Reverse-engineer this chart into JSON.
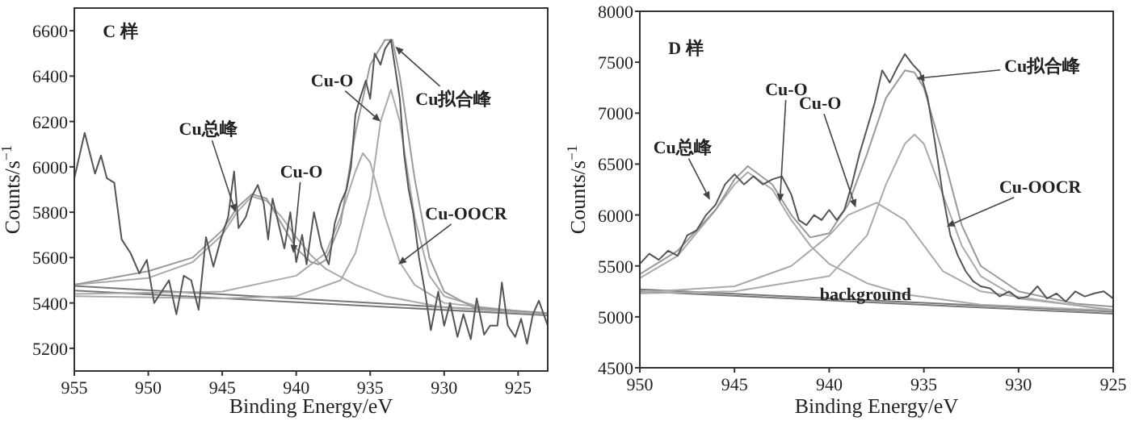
{
  "chart_data": [
    {
      "type": "line",
      "xlabel": "Binding Energy/eV",
      "ylabel": "Counts/s$^{−1}$",
      "xlim": [
        955,
        923
      ],
      "ylim": [
        5100,
        6700
      ],
      "xticks": [
        955,
        950,
        945,
        940,
        935,
        930,
        925
      ],
      "yticks": [
        5200,
        5400,
        5600,
        5800,
        6000,
        6200,
        6400,
        6600
      ],
      "series": [
        {
          "color": "#777777",
          "x": [
            955,
            923
          ],
          "values": [
            5475,
            5355
          ]
        },
        {
          "color": "#777777",
          "x": [
            955,
            923
          ],
          "values": [
            5455,
            5345
          ]
        },
        {
          "color": "#aaaaaa",
          "x": [
            955,
            950,
            947,
            945,
            944,
            943,
            942,
            941,
            940,
            939,
            938,
            936,
            934,
            930,
            923
          ],
          "values": [
            5480,
            5510,
            5580,
            5700,
            5800,
            5870,
            5850,
            5780,
            5690,
            5610,
            5550,
            5480,
            5430,
            5380,
            5350
          ]
        },
        {
          "color": "#aaaaaa",
          "x": [
            955,
            945,
            940,
            938,
            937,
            936,
            935.5,
            935,
            934,
            933,
            932,
            930,
            923
          ],
          "values": [
            5440,
            5450,
            5520,
            5620,
            5780,
            5980,
            6060,
            6020,
            5780,
            5580,
            5480,
            5400,
            5350
          ]
        },
        {
          "color": "#aaaaaa",
          "x": [
            955,
            945,
            940,
            937,
            936,
            935,
            934.3,
            933.6,
            933,
            932,
            931,
            930,
            927,
            923
          ],
          "values": [
            5430,
            5420,
            5430,
            5500,
            5620,
            5870,
            6200,
            6340,
            6200,
            5780,
            5520,
            5430,
            5370,
            5350
          ]
        },
        {
          "color": "#999999",
          "x": [
            955,
            950,
            947,
            945,
            944,
            943,
            942,
            941,
            940,
            939,
            938.5,
            938,
            937,
            936,
            935,
            934,
            933.5,
            933,
            932,
            931,
            930,
            928,
            923
          ],
          "values": [
            5480,
            5540,
            5600,
            5720,
            5820,
            5880,
            5860,
            5750,
            5640,
            5580,
            5570,
            5590,
            5750,
            6150,
            6450,
            6560,
            6560,
            6400,
            5950,
            5600,
            5450,
            5380,
            5355
          ]
        },
        {
          "color": "#555555",
          "x": [
            955,
            954.3,
            953.6,
            953.2,
            952.8,
            952.3,
            951.8,
            951.2,
            950.6,
            950.1,
            949.6,
            949.1,
            948.6,
            948.1,
            947.6,
            947.1,
            946.6,
            946.1,
            945.6,
            945.1,
            944.6,
            944.2,
            943.9,
            943.4,
            943,
            942.6,
            942.2,
            941.9,
            941.6,
            941.2,
            940.8,
            940.4,
            940,
            939.6,
            939.3,
            938.8,
            938.3,
            937.8,
            937.4,
            937,
            936.6,
            936.3,
            936,
            935.7,
            935.3,
            935,
            934.7,
            934.3,
            934,
            933.6,
            933.3,
            933,
            932.7,
            932.4,
            932.1,
            931.7,
            931.3,
            930.9,
            930.4,
            930,
            929.6,
            929.1,
            928.7,
            928.2,
            927.8,
            927.3,
            926.9,
            926.4,
            926.1,
            925.7,
            925.2,
            924.8,
            924.4,
            924,
            923.6,
            923
          ],
          "values": [
            5950,
            6150,
            5970,
            6050,
            5950,
            5930,
            5680,
            5620,
            5530,
            5590,
            5400,
            5450,
            5500,
            5350,
            5520,
            5500,
            5370,
            5690,
            5560,
            5680,
            5780,
            5980,
            5730,
            5780,
            5870,
            5920,
            5840,
            5680,
            5860,
            5750,
            5640,
            5800,
            5580,
            5700,
            5570,
            5800,
            5650,
            5570,
            5750,
            5840,
            5900,
            6000,
            6230,
            6300,
            6380,
            6300,
            6500,
            6450,
            6520,
            6560,
            6430,
            6300,
            6050,
            5900,
            5800,
            5600,
            5450,
            5280,
            5450,
            5300,
            5400,
            5250,
            5350,
            5240,
            5420,
            5260,
            5300,
            5300,
            5490,
            5300,
            5250,
            5330,
            5220,
            5350,
            5410,
            5300
          ]
        }
      ],
      "annotations": [
        "C 样",
        {
          "text": "Cu总峰",
          "x": 944.1,
          "y": 5800
        },
        {
          "text": "Cu-O",
          "x": 940.2,
          "y": 5620
        },
        {
          "text": "Cu-O",
          "x": 934.3,
          "y": 6200
        },
        {
          "text": "Cu拟合峰",
          "x": 933.3,
          "y": 6530
        },
        {
          "text": "Cu-OOCR",
          "x": 933.1,
          "y": 5570
        }
      ]
    },
    {
      "type": "line",
      "xlabel": "Binding Energy/eV",
      "ylabel": "Counts/s$^{−1}$",
      "xlim": [
        950,
        925
      ],
      "ylim": [
        4500,
        8000
      ],
      "xticks": [
        950,
        945,
        940,
        935,
        930,
        925
      ],
      "yticks": [
        4500,
        5000,
        5500,
        6000,
        6500,
        7000,
        7500,
        8000
      ],
      "series": [
        {
          "color": "#777777",
          "x": [
            950,
            925
          ],
          "values": [
            5270,
            5050
          ]
        },
        {
          "color": "#777777",
          "x": [
            950,
            925
          ],
          "values": [
            5250,
            5030
          ]
        },
        {
          "color": "#aaaaaa",
          "x": [
            950,
            948,
            946,
            945,
            944.3,
            943,
            942,
            941,
            940,
            938,
            936,
            932,
            925
          ],
          "values": [
            5380,
            5600,
            6050,
            6300,
            6420,
            6250,
            5950,
            5700,
            5520,
            5330,
            5220,
            5120,
            5060
          ]
        },
        {
          "color": "#aaaaaa",
          "x": [
            950,
            945,
            942,
            940,
            939,
            937.5,
            936,
            935,
            934,
            932,
            925
          ],
          "values": [
            5240,
            5300,
            5500,
            5800,
            6000,
            6120,
            5950,
            5700,
            5450,
            5250,
            5060
          ]
        },
        {
          "color": "#aaaaaa",
          "x": [
            950,
            945,
            940,
            938,
            937,
            936,
            935.5,
            935,
            934,
            933,
            932,
            930,
            925
          ],
          "values": [
            5230,
            5250,
            5400,
            5800,
            6300,
            6700,
            6790,
            6700,
            6200,
            5700,
            5400,
            5180,
            5070
          ]
        },
        {
          "color": "#999999",
          "x": [
            950,
            948,
            946,
            945,
            944.3,
            943,
            942,
            941,
            940,
            939,
            938,
            937,
            936,
            935.5,
            935,
            934,
            933,
            932,
            930,
            927,
            925
          ],
          "values": [
            5420,
            5650,
            6050,
            6350,
            6480,
            6300,
            6000,
            5780,
            5820,
            6100,
            6600,
            7150,
            7420,
            7400,
            7250,
            6600,
            5900,
            5500,
            5250,
            5130,
            5100
          ]
        },
        {
          "color": "#555555",
          "x": [
            950,
            949.5,
            949,
            948.5,
            948,
            947.5,
            947,
            946.5,
            946,
            945.5,
            945,
            944.5,
            944,
            943.5,
            943,
            942.5,
            942,
            941.6,
            941.2,
            940.8,
            940.4,
            940,
            939.6,
            939.2,
            938.8,
            938.4,
            938,
            937.6,
            937.2,
            936.8,
            936.4,
            936,
            935.6,
            935.2,
            934.8,
            934.4,
            934,
            933.6,
            933.2,
            932.8,
            932.4,
            932,
            931.5,
            931,
            930.5,
            930,
            929.5,
            929,
            928.5,
            928,
            927.5,
            927,
            926.5,
            926,
            925.5,
            925
          ],
          "values": [
            5520,
            5620,
            5560,
            5650,
            5600,
            5800,
            5850,
            6000,
            6100,
            6300,
            6400,
            6300,
            6380,
            6300,
            6350,
            6380,
            6200,
            5950,
            5900,
            6000,
            5950,
            6050,
            5950,
            6050,
            6300,
            6600,
            6850,
            7100,
            7420,
            7300,
            7450,
            7580,
            7480,
            7400,
            7150,
            6700,
            6200,
            5800,
            5600,
            5450,
            5350,
            5300,
            5280,
            5200,
            5250,
            5180,
            5200,
            5300,
            5180,
            5230,
            5150,
            5250,
            5200,
            5230,
            5250,
            5180
          ]
        }
      ],
      "annotations": [
        "D 样",
        "background",
        {
          "text": "Cu总峰",
          "x": 946.3,
          "y": 6150
        },
        {
          "text": "Cu-O",
          "x": 942.6,
          "y": 6130
        },
        {
          "text": "Cu-O",
          "x": 938.6,
          "y": 6073
        },
        {
          "text": "Cu拟合峰",
          "x": 935.4,
          "y": 7340
        },
        {
          "text": "Cu-OOCR",
          "x": 933.8,
          "y": 5888
        }
      ]
    }
  ]
}
